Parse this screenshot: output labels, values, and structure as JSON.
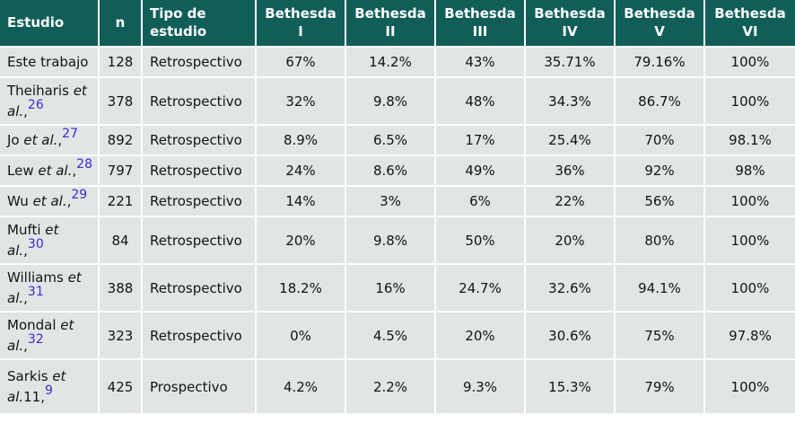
{
  "colors": {
    "header_bg": "#115e59",
    "header_text": "#ffffff",
    "row_bg": "#e1e5e4",
    "grid_line": "#ffffff",
    "reference_link": "#3a2bd2",
    "text": "#141414"
  },
  "table": {
    "columns": [
      {
        "key": "estudio",
        "l1": "Estudio",
        "l2": ""
      },
      {
        "key": "n",
        "l1": "n",
        "l2": ""
      },
      {
        "key": "tipo-de-estudio",
        "l1": "Tipo de",
        "l2": "estudio"
      },
      {
        "key": "bethesda-i",
        "l1": "Bethesda",
        "l2": "I"
      },
      {
        "key": "bethesda-ii",
        "l1": "Bethesda",
        "l2": "II"
      },
      {
        "key": "bethesda-iii",
        "l1": "Bethesda",
        "l2": "III"
      },
      {
        "key": "bethesda-iv",
        "l1": "Bethesda",
        "l2": "IV"
      },
      {
        "key": "bethesda-v",
        "l1": "Bethesda",
        "l2": "V"
      },
      {
        "key": "bethesda-vi",
        "l1": "Bethesda",
        "l2": "VI"
      }
    ],
    "rows": [
      {
        "study": {
          "prefix": "Este trabajo",
          "italic": "",
          "mid": "",
          "ref": ""
        },
        "n": "128",
        "tipo": "Retrospectivo",
        "values": [
          "67%",
          "14.2%",
          "43%",
          "35.71%",
          "79.16%",
          "100%"
        ]
      },
      {
        "study": {
          "prefix": "Theiharis ",
          "italic": "et al.",
          "mid": ",",
          "ref": "26"
        },
        "n": "378",
        "tipo": "Retrospectivo",
        "values": [
          "32%",
          "9.8%",
          "48%",
          "34.3%",
          "86.7%",
          "100%"
        ]
      },
      {
        "study": {
          "prefix": "Jo ",
          "italic": "et al.",
          "mid": ",",
          "ref": "27"
        },
        "n": "892",
        "tipo": "Retrospectivo",
        "values": [
          "8.9%",
          "6.5%",
          "17%",
          "25.4%",
          "70%",
          "98.1%"
        ]
      },
      {
        "study": {
          "prefix": "Lew ",
          "italic": "et al.",
          "mid": ",",
          "ref": "28"
        },
        "n": "797",
        "tipo": "Retrospectivo",
        "values": [
          "24%",
          "8.6%",
          "49%",
          "36%",
          "92%",
          "98%"
        ]
      },
      {
        "study": {
          "prefix": "Wu ",
          "italic": "et al.",
          "mid": ",",
          "ref": "29"
        },
        "n": "221",
        "tipo": "Retrospectivo",
        "values": [
          "14%",
          "3%",
          "6%",
          "22%",
          "56%",
          "100%"
        ]
      },
      {
        "study": {
          "prefix": "Mufti ",
          "italic": "et al.",
          "mid": ",",
          "ref": "30"
        },
        "n": "84",
        "tipo": "Retrospectivo",
        "values": [
          "20%",
          "9.8%",
          "50%",
          "20%",
          "80%",
          "100%"
        ]
      },
      {
        "study": {
          "prefix": "Williams ",
          "italic": "et al.",
          "mid": ",",
          "ref": "31"
        },
        "n": "388",
        "tipo": "Retrospectivo",
        "values": [
          "18.2%",
          "16%",
          "24.7%",
          "32.6%",
          "94.1%",
          "100%"
        ]
      },
      {
        "study": {
          "prefix": "Mondal ",
          "italic": "et al.",
          "mid": ",",
          "ref": "32"
        },
        "n": "323",
        "tipo": "Retrospectivo",
        "values": [
          "0%",
          "4.5%",
          "20%",
          "30.6%",
          "75%",
          "97.8%"
        ]
      },
      {
        "study": {
          "prefix": "Sarkis ",
          "italic": "et al.",
          "mid": "11,",
          "ref": "9"
        },
        "n": "425",
        "tipo": "Prospectivo",
        "values": [
          "4.2%",
          "2.2%",
          "9.3%",
          "15.3%",
          "79%",
          "100%"
        ]
      }
    ]
  }
}
